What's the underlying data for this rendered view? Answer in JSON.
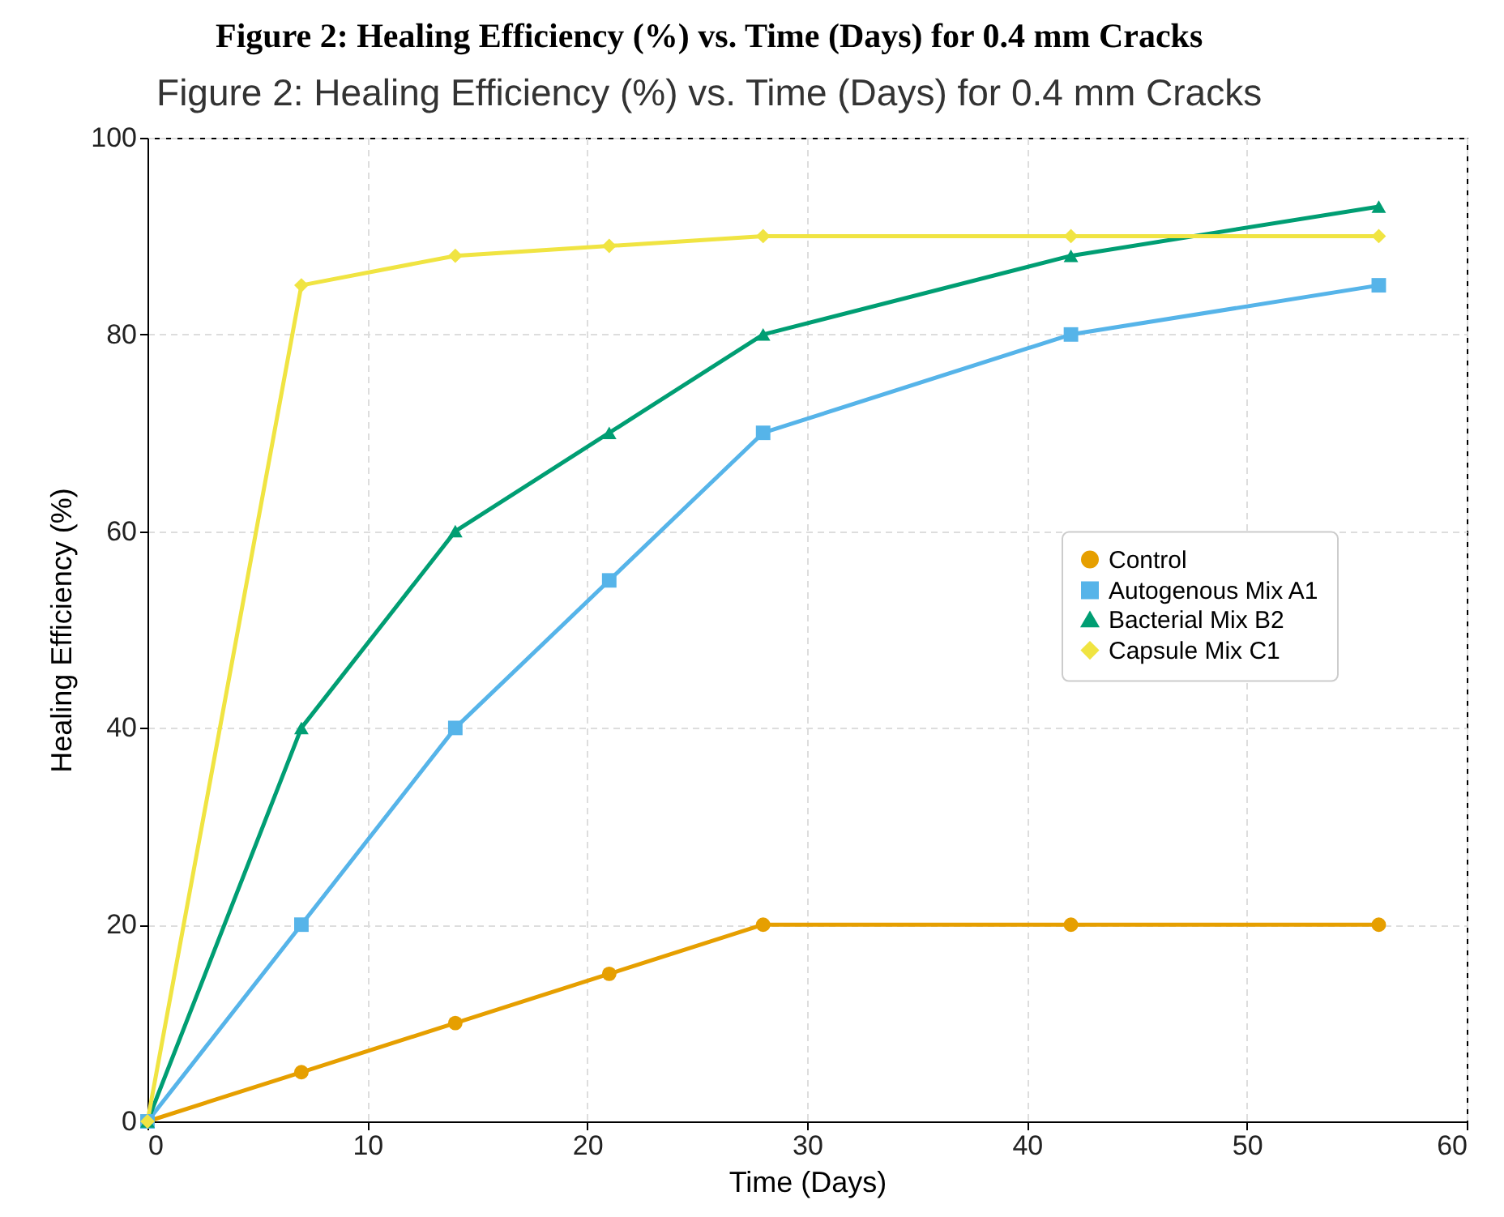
{
  "chart_data": {
    "type": "line",
    "title": "Figure 2: Healing Efficiency (%) vs. Time (Days) for 0.4 mm Cracks",
    "subtitle": "Figure 2: Healing Efficiency (%) vs. Time (Days) for 0.4 mm Cracks",
    "xlabel": "Time (Days)",
    "ylabel": "Healing Efficiency (%)",
    "x": [
      0,
      7,
      14,
      21,
      28,
      42,
      56
    ],
    "series": [
      {
        "name": "Control",
        "color": "#e69f00",
        "marker": "circle",
        "values": [
          0,
          5,
          10,
          15,
          20,
          20,
          20
        ]
      },
      {
        "name": "Autogenous Mix A1",
        "color": "#56b4e9",
        "marker": "square",
        "values": [
          0,
          20,
          40,
          55,
          70,
          80,
          85
        ]
      },
      {
        "name": "Bacterial Mix B2",
        "color": "#009e73",
        "marker": "triangle",
        "values": [
          0,
          40,
          60,
          70,
          80,
          88,
          93
        ]
      },
      {
        "name": "Capsule Mix C1",
        "color": "#f0e442",
        "marker": "diamond",
        "values": [
          0,
          85,
          88,
          89,
          90,
          90,
          90
        ]
      }
    ],
    "xlim": [
      0,
      60
    ],
    "xticks": [
      0,
      10,
      20,
      30,
      40,
      50,
      60
    ],
    "ylim": [
      0,
      100
    ],
    "yticks": [
      0,
      20,
      40,
      60,
      80,
      100
    ],
    "grid": true,
    "legend": "right",
    "line_style": "solid"
  }
}
